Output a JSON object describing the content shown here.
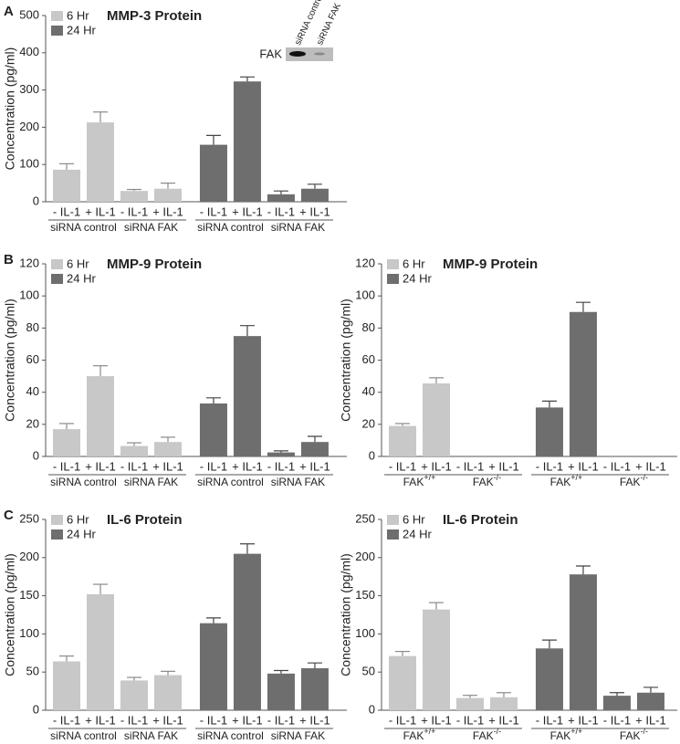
{
  "chart_data": [
    {
      "type": "bar",
      "panel": "A",
      "title": "MMP-3 Protein",
      "ylabel": "Concentration (pg/ml)",
      "categories": [
        "- IL-1",
        "+ IL-1",
        "- IL-1",
        "+ IL-1",
        "- IL-1",
        "+ IL-1",
        "- IL-1",
        "+ IL-1"
      ],
      "groups": [
        "siRNA control",
        "siRNA FAK",
        "siRNA control",
        "siRNA FAK"
      ],
      "series": [
        {
          "name": "6 Hr",
          "color": "#c8c8c8",
          "values": [
            86,
            213,
            29,
            35,
            null,
            null,
            null,
            null
          ],
          "errors": [
            16,
            28,
            4,
            15,
            null,
            null,
            null,
            null
          ]
        },
        {
          "name": "24 Hr",
          "color": "#6e6e6e",
          "values": [
            null,
            null,
            null,
            null,
            153,
            323,
            20,
            35
          ],
          "errors": [
            null,
            null,
            null,
            null,
            25,
            12,
            9,
            12
          ]
        }
      ],
      "ylim": [
        0,
        500
      ],
      "yticks": [
        0,
        100,
        200,
        300,
        400,
        500
      ],
      "legend": "upper left",
      "inset": {
        "label": "FAK",
        "lanes": [
          "siRNA control",
          "siRNA FAK"
        ]
      }
    },
    {
      "type": "bar",
      "panel": "B",
      "title": "MMP-9 Protein",
      "ylabel": "Concentration (pg/ml)",
      "categories": [
        "- IL-1",
        "+ IL-1",
        "- IL-1",
        "+ IL-1",
        "- IL-1",
        "+ IL-1",
        "- IL-1",
        "+ IL-1"
      ],
      "groups": [
        "siRNA control",
        "siRNA FAK",
        "siRNA control",
        "siRNA FAK"
      ],
      "series": [
        {
          "name": "6 Hr",
          "color": "#c8c8c8",
          "values": [
            17,
            50,
            6.5,
            9,
            null,
            null,
            null,
            null
          ],
          "errors": [
            3.5,
            6.5,
            2,
            3,
            null,
            null,
            null,
            null
          ]
        },
        {
          "name": "24 Hr",
          "color": "#6e6e6e",
          "values": [
            null,
            null,
            null,
            null,
            33,
            75,
            2.5,
            9
          ],
          "errors": [
            null,
            null,
            null,
            null,
            3.5,
            6.5,
            1,
            3.5
          ]
        }
      ],
      "ylim": [
        0,
        120
      ],
      "yticks": [
        0,
        20,
        40,
        60,
        80,
        100,
        120
      ],
      "legend": "upper left"
    },
    {
      "type": "bar",
      "title": "MMP-9 Protein",
      "ylabel": "Concentration (pg/ml)",
      "categories": [
        "- IL-1",
        "+ IL-1",
        "- IL-1",
        "+ IL-1",
        "- IL-1",
        "+ IL-1",
        "- IL-1",
        "+ IL-1"
      ],
      "groups": [
        {
          "text": "FAK",
          "sup": "+/+"
        },
        {
          "text": "FAK",
          "sup": "-/-"
        },
        {
          "text": "FAK",
          "sup": "+/+"
        },
        {
          "text": "FAK",
          "sup": "-/-"
        }
      ],
      "series": [
        {
          "name": "6 Hr",
          "color": "#c8c8c8",
          "values": [
            19,
            45.5,
            0,
            0,
            null,
            null,
            null,
            null
          ],
          "errors": [
            1.5,
            3.5,
            null,
            null,
            null,
            null,
            null,
            null
          ]
        },
        {
          "name": "24 Hr",
          "color": "#6e6e6e",
          "values": [
            null,
            null,
            null,
            null,
            30.5,
            90,
            0,
            0
          ],
          "errors": [
            null,
            null,
            null,
            null,
            4,
            6,
            null,
            null
          ]
        }
      ],
      "ylim": [
        0,
        120
      ],
      "yticks": [
        0,
        20,
        40,
        60,
        80,
        100,
        120
      ],
      "legend": "upper left"
    },
    {
      "type": "bar",
      "panel": "C",
      "title": "IL-6 Protein",
      "ylabel": "Concentration (pg/ml)",
      "categories": [
        "- IL-1",
        "+ IL-1",
        "- IL-1",
        "+ IL-1",
        "- IL-1",
        "+ IL-1",
        "- IL-1",
        "+ IL-1"
      ],
      "groups": [
        "siRNA control",
        "siRNA FAK",
        "siRNA control",
        "siRNA FAK"
      ],
      "series": [
        {
          "name": "6 Hr",
          "color": "#c8c8c8",
          "values": [
            64,
            152,
            39,
            46,
            null,
            null,
            null,
            null
          ],
          "errors": [
            7,
            13,
            4,
            5,
            null,
            null,
            null,
            null
          ]
        },
        {
          "name": "24 Hr",
          "color": "#6e6e6e",
          "values": [
            null,
            null,
            null,
            null,
            114,
            205,
            48,
            55
          ],
          "errors": [
            null,
            null,
            null,
            null,
            7,
            13,
            4,
            7
          ]
        }
      ],
      "ylim": [
        0,
        250
      ],
      "yticks": [
        0,
        50,
        100,
        150,
        200,
        250
      ],
      "legend": "upper left"
    },
    {
      "type": "bar",
      "title": "IL-6 Protein",
      "ylabel": "Concentration (pg/ml)",
      "categories": [
        "- IL-1",
        "+ IL-1",
        "- IL-1",
        "+ IL-1",
        "- IL-1",
        "+ IL-1",
        "- IL-1",
        "+ IL-1"
      ],
      "groups": [
        {
          "text": "FAK",
          "sup": "+/+"
        },
        {
          "text": "FAK",
          "sup": "-/-"
        },
        {
          "text": "FAK",
          "sup": "+/+"
        },
        {
          "text": "FAK",
          "sup": "-/-"
        }
      ],
      "series": [
        {
          "name": "6 Hr",
          "color": "#c8c8c8",
          "values": [
            71,
            132,
            16,
            17,
            null,
            null,
            null,
            null
          ],
          "errors": [
            6,
            9,
            3.5,
            6,
            null,
            null,
            null,
            null
          ]
        },
        {
          "name": "24 Hr",
          "color": "#6e6e6e",
          "values": [
            null,
            null,
            null,
            null,
            81,
            178,
            19,
            23
          ],
          "errors": [
            null,
            null,
            null,
            null,
            11,
            11,
            4,
            7
          ]
        }
      ],
      "ylim": [
        0,
        250
      ],
      "yticks": [
        0,
        50,
        100,
        150,
        200,
        250
      ],
      "legend": "upper left"
    }
  ]
}
